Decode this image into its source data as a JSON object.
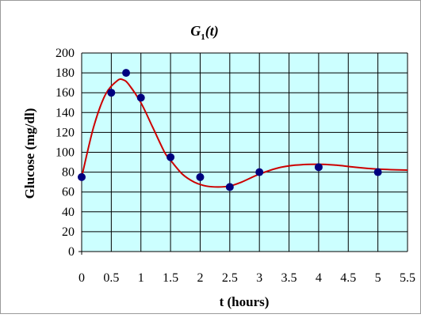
{
  "chart_data": {
    "type": "scatter",
    "title": {
      "main": "G",
      "sub": "1",
      "tail": "(t)"
    },
    "xlabel": "t (hours)",
    "ylabel": "Glucose (mg/dl)",
    "xlim": [
      0,
      5.5
    ],
    "ylim": [
      0,
      200
    ],
    "x_ticks": [
      "0",
      "0.5",
      "1",
      "1.5",
      "2",
      "2.5",
      "3",
      "3.5",
      "4",
      "4.5",
      "5",
      "5.5"
    ],
    "y_ticks": [
      "0",
      "20",
      "40",
      "60",
      "80",
      "100",
      "120",
      "140",
      "160",
      "180",
      "200"
    ],
    "grid": true,
    "series": [
      {
        "points": [
          [
            0,
            75
          ],
          [
            0.5,
            160
          ],
          [
            0.75,
            180
          ],
          [
            1,
            155
          ],
          [
            1.5,
            95
          ],
          [
            2,
            75
          ],
          [
            2.5,
            65
          ],
          [
            3,
            80
          ],
          [
            4,
            85
          ],
          [
            5,
            80
          ]
        ]
      },
      {
        "curve": [
          [
            0,
            75
          ],
          [
            0.2,
            125
          ],
          [
            0.4,
            158
          ],
          [
            0.6,
            172
          ],
          [
            0.7,
            173
          ],
          [
            0.8,
            168
          ],
          [
            1.0,
            150
          ],
          [
            1.2,
            125
          ],
          [
            1.4,
            100
          ],
          [
            1.5,
            92
          ],
          [
            1.7,
            78
          ],
          [
            1.9,
            70
          ],
          [
            2.1,
            66
          ],
          [
            2.3,
            65
          ],
          [
            2.5,
            66
          ],
          [
            2.7,
            70
          ],
          [
            3.0,
            78
          ],
          [
            3.3,
            84
          ],
          [
            3.6,
            87
          ],
          [
            4.0,
            88
          ],
          [
            4.3,
            87
          ],
          [
            4.6,
            85
          ],
          [
            5.0,
            83
          ],
          [
            5.5,
            82
          ]
        ]
      }
    ],
    "colors": {
      "plot_background": "#ccffff",
      "grid": "#000000",
      "point": "#00007f",
      "curve": "#cc0000"
    }
  }
}
